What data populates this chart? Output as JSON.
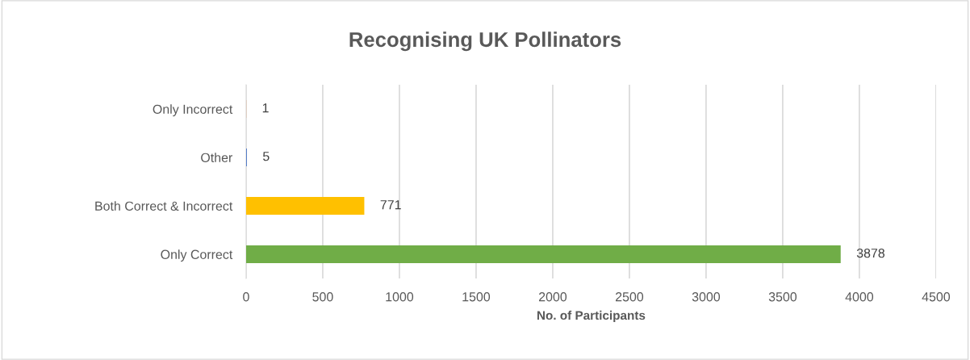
{
  "chart_data": {
    "type": "bar",
    "orientation": "horizontal",
    "title": "Recognising UK Pollinators",
    "xlabel": "No. of Participants",
    "categories": [
      "Only Incorrect",
      "Other",
      "Both Correct & Incorrect",
      "Only Correct"
    ],
    "values": [
      1,
      5,
      771,
      3878
    ],
    "colors": [
      "#ed7d31",
      "#4472c4",
      "#ffc000",
      "#70ad47"
    ],
    "xlim": [
      0,
      4500
    ],
    "xticks": [
      0,
      500,
      1000,
      1500,
      2000,
      2500,
      3000,
      3500,
      4000,
      4500
    ],
    "grid": "x",
    "data_labels": true,
    "legend": false
  }
}
